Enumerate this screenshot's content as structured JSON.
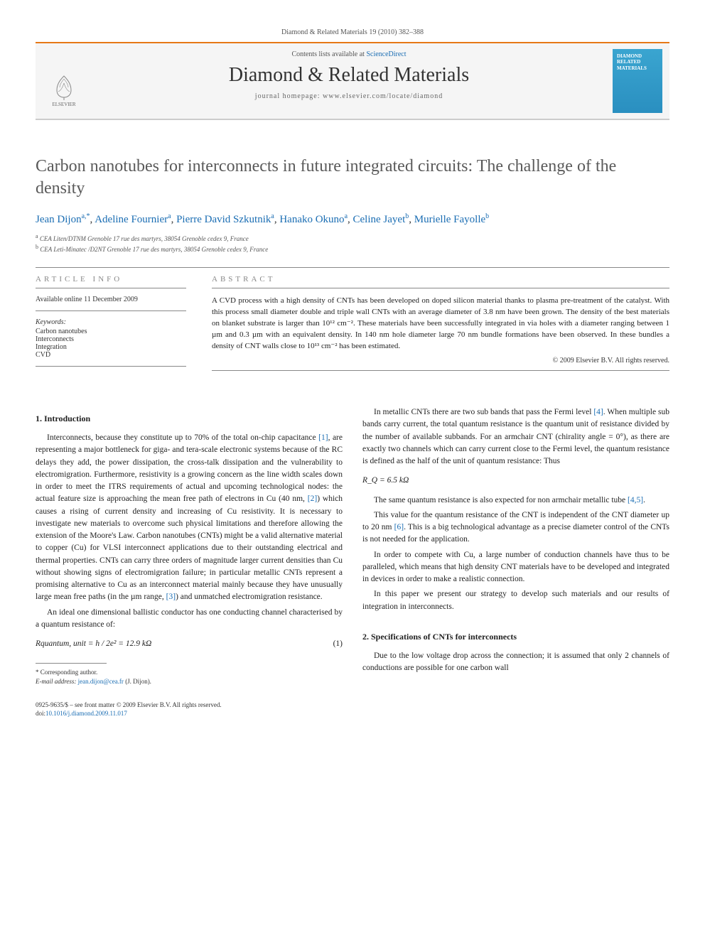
{
  "colors": {
    "accent_orange": "#e67817",
    "link_blue": "#1a6db3",
    "text_gray": "#5a5a5a",
    "rule_gray": "#888888",
    "cover_gradient_top": "#3aa5d0",
    "cover_gradient_bottom": "#2a8fc0",
    "body_text": "#222222"
  },
  "typography": {
    "base_font": "Georgia, serif",
    "title_size_pt": 24,
    "body_size_pt": 11.5,
    "abstract_size_pt": 11,
    "footnote_size_pt": 9
  },
  "header": {
    "citation": "Diamond & Related Materials 19 (2010) 382–388",
    "contents_prefix": "Contents lists available at ",
    "contents_link": "ScienceDirect",
    "journal_name": "Diamond & Related Materials",
    "homepage_label": "journal homepage: www.elsevier.com/locate/diamond",
    "publisher_logo_label": "ELSEVIER",
    "cover_lines": [
      "DIAMOND",
      "RELATED",
      "MATERIALS"
    ]
  },
  "article": {
    "title": "Carbon nanotubes for interconnects in future integrated circuits: The challenge of the density",
    "authors": [
      {
        "name": "Jean Dijon",
        "markers": "a,*"
      },
      {
        "name": "Adeline Fournier",
        "markers": "a"
      },
      {
        "name": "Pierre David Szkutnik",
        "markers": "a"
      },
      {
        "name": "Hanako Okuno",
        "markers": "a"
      },
      {
        "name": "Celine Jayet",
        "markers": "b"
      },
      {
        "name": "Murielle Fayolle",
        "markers": "b"
      }
    ],
    "affiliations": [
      {
        "marker": "a",
        "text": "CEA Liten/DTNM Grenoble 17 rue des martyrs, 38054 Grenoble cedex 9, France"
      },
      {
        "marker": "b",
        "text": "CEA Leti-Minatec /D2NT Grenoble 17 rue des martyrs, 38054 Grenoble cedex 9, France"
      }
    ]
  },
  "info": {
    "heading": "ARTICLE INFO",
    "availability": "Available online 11 December 2009",
    "keywords_label": "Keywords:",
    "keywords": [
      "Carbon nanotubes",
      "Interconnects",
      "Integration",
      "CVD"
    ]
  },
  "abstract": {
    "heading": "ABSTRACT",
    "text": "A CVD process with a high density of CNTs has been developed on doped silicon material thanks to plasma pre-treatment of the catalyst. With this process small diameter double and triple wall CNTs with an average diameter of 3.8 nm have been grown. The density of the best materials on blanket substrate is larger than 10¹² cm⁻². These materials have been successfully integrated in via holes with a diameter ranging between 1 µm and 0.3 µm with an equivalent density. In 140 nm hole diameter large 70 nm bundle formations have been observed. In these bundles a density of CNT walls close to 10¹³ cm⁻² has been estimated.",
    "copyright": "© 2009 Elsevier B.V. All rights reserved."
  },
  "sections": {
    "s1_heading": "1. Introduction",
    "s1_p1": "Interconnects, because they constitute up to 70% of the total on-chip capacitance [1], are representing a major bottleneck for giga- and tera-scale electronic systems because of the RC delays they add, the power dissipation, the cross-talk dissipation and the vulnerability to electromigration. Furthermore, resistivity is a growing concern as the line width scales down in order to meet the ITRS requirements of actual and upcoming technological nodes: the actual feature size is approaching the mean free path of electrons in Cu (40 nm, [2]) which causes a rising of current density and increasing of Cu resistivity. It is necessary to investigate new materials to overcome such physical limitations and therefore allowing the extension of the Moore's Law. Carbon nanotubes (CNTs) might be a valid alternative material to copper (Cu) for VLSI interconnect applications due to their outstanding electrical and thermal properties. CNTs can carry three orders of magnitude larger current densities than Cu without showing signs of electromigration failure; in particular metallic CNTs represent a promising alternative to Cu as an interconnect material mainly because they have unusually large mean free paths (in the µm range, [3]) and unmatched electromigration resistance.",
    "s1_p2": "An ideal one dimensional ballistic conductor has one conducting channel characterised by a quantum resistance of:",
    "eq1": "Rquantum, unit = h / 2e² = 12.9  kΩ",
    "eq1_num": "(1)",
    "s1_p3": "In metallic CNTs there are two sub bands that pass the Fermi level [4]. When multiple sub bands carry current, the total quantum resistance is the quantum unit of resistance divided by the number of available subbands. For an armchair CNT (chirality angle = 0°), as there are exactly two channels which can carry current close to the Fermi level, the quantum resistance is defined as the half of the unit of quantum resistance: Thus",
    "eq2": "R_Q = 6.5  kΩ",
    "s1_p4": "The same quantum resistance is also expected for non armchair metallic tube [4,5].",
    "s1_p5": "This value for the quantum resistance of the CNT is independent of the CNT diameter up to 20 nm [6]. This is a big technological advantage as a precise diameter control of the CNTs is not needed for the application.",
    "s1_p6": "In order to compete with Cu, a large number of conduction channels have thus to be paralleled, which means that high density CNT materials have to be developed and integrated in devices in order to make a realistic connection.",
    "s1_p7": "In this paper we present our strategy to develop such materials and our results of integration in interconnects.",
    "s2_heading": "2. Specifications of CNTs for interconnects",
    "s2_p1": "Due to the low voltage drop across the connection; it is assumed that only 2 channels of conductions are possible for one carbon wall"
  },
  "footnotes": {
    "corresponding": "* Corresponding author.",
    "email_label": "E-mail address: ",
    "email": "jean.dijon@cea.fr",
    "email_suffix": " (J. Dijon)."
  },
  "footer": {
    "line1": "0925-9635/$ – see front matter © 2009 Elsevier B.V. All rights reserved.",
    "doi_label": "doi:",
    "doi": "10.1016/j.diamond.2009.11.017"
  }
}
